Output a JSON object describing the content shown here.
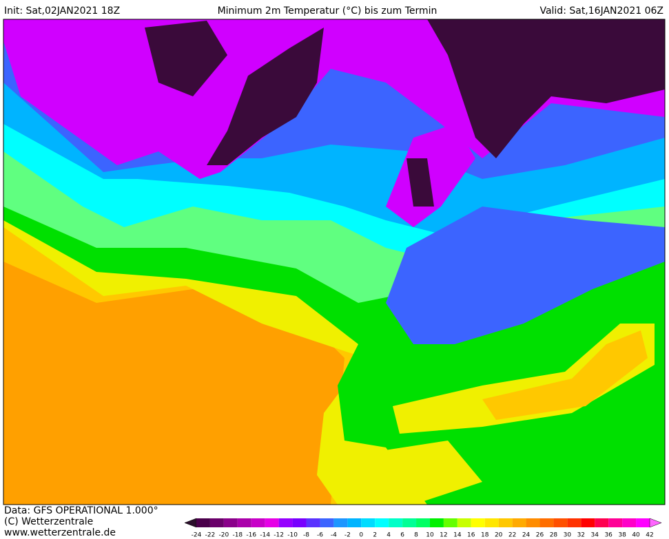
{
  "header": {
    "init": "Init: Sat,02JAN2021 18Z",
    "title": "Minimum 2m Temperatur (°C) bis zum Termin",
    "valid": "Valid: Sat,16JAN2021 06Z"
  },
  "footer": {
    "data": "Data: GFS OPERATIONAL 1.000°",
    "copyright": "(C) Wetterzentrale",
    "url": "www.wetterzentrale.de"
  },
  "colorbar": {
    "ticks": [
      -24,
      -22,
      -20,
      -18,
      -16,
      -14,
      -12,
      -10,
      -8,
      -6,
      -4,
      -2,
      0,
      2,
      4,
      6,
      8,
      10,
      12,
      14,
      16,
      18,
      20,
      22,
      24,
      26,
      28,
      30,
      32,
      34,
      36,
      38,
      40,
      42
    ],
    "colors": [
      "#2c0f2c",
      "#4b004b",
      "#6a006a",
      "#8a008a",
      "#aa00aa",
      "#c800c8",
      "#e600e6",
      "#9600ff",
      "#7800ff",
      "#5a32ff",
      "#3c64ff",
      "#1e96ff",
      "#00b4ff",
      "#00dcff",
      "#00ffff",
      "#00ffc8",
      "#00ff96",
      "#00ff64",
      "#00f000",
      "#64ff00",
      "#c8ff00",
      "#ffff00",
      "#ffe600",
      "#ffc800",
      "#ffaa00",
      "#ff8c00",
      "#ff6e00",
      "#ff5000",
      "#ff3200",
      "#ff0000",
      "#ff0050",
      "#ff0096",
      "#ff00c8",
      "#ff00ff",
      "#ff64ff"
    ]
  }
}
